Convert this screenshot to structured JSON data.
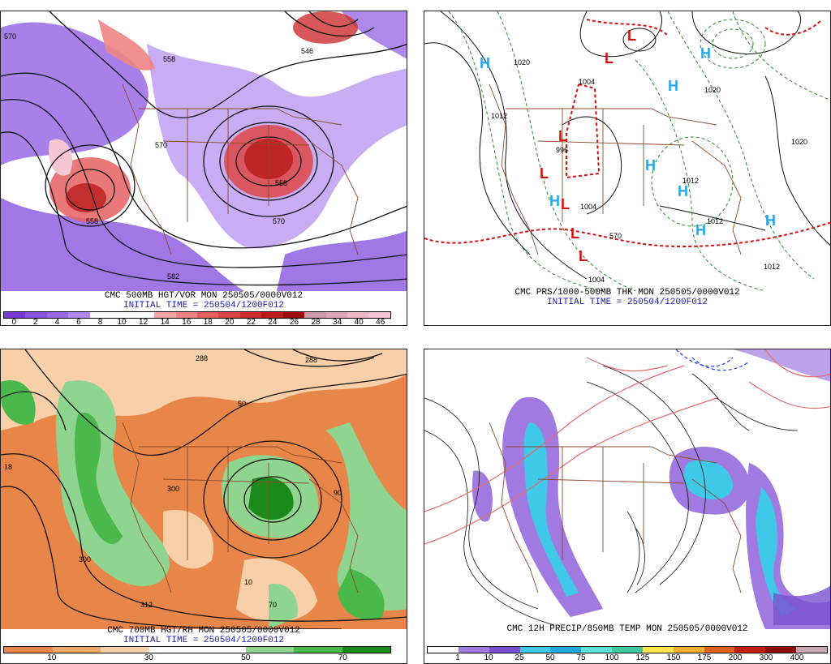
{
  "panels": {
    "tl": {
      "line1": "CMC 500MB HGT/VOR MON 250505/0000V012",
      "line2": "INITIAL TIME = 250504/1200F012",
      "legend_colors": [
        "#7a3ad8",
        "#8a55e0",
        "#9a6ae6",
        "#b08af0",
        "#ffffff",
        "#ffffff",
        "#ffffff",
        "#f4a8a8",
        "#ee8484",
        "#e66060",
        "#dd4646",
        "#cc2e2e",
        "#b81c1c",
        "#9c0e0e",
        "#cc9aa8",
        "#dda8b8",
        "#eeb8c8",
        "#f6c6d2"
      ],
      "legend_labels": [
        "0",
        "2",
        "4",
        "6",
        "8",
        "10",
        "12",
        "14",
        "16",
        "18",
        "20",
        "22",
        "24",
        "26",
        "28",
        "34",
        "40",
        "46"
      ],
      "map_labels": [
        "570",
        "558",
        "546",
        "570",
        "558",
        "570",
        "582",
        "546",
        "558",
        "570",
        "558",
        "570"
      ]
    },
    "tr": {
      "line1": "CMC PRS/1000-500MB THK MON 250505/0000V012",
      "line2": "INITIAL TIME = 250504/1200F012",
      "highs": [
        "H",
        "H",
        "H",
        "H",
        "H",
        "H",
        "H",
        "H",
        "H"
      ],
      "lows": [
        "L",
        "L",
        "L",
        "L",
        "L",
        "L",
        "L"
      ],
      "isobar_labels": [
        "1020",
        "1012",
        "1004",
        "996",
        "1012",
        "1020",
        "1020",
        "1012",
        "1012",
        "1004",
        "1012",
        "570",
        "1004"
      ]
    },
    "bl": {
      "line1": "CMC 700MB HGT/RH MON 250505/0000V012",
      "line2": "INITIAL TIME = 250504/1200F012",
      "legend_colors": [
        "#e8864a",
        "#f0a868",
        "#f7cfa8",
        "#ffffff",
        "#ffffff",
        "#8fd48f",
        "#4ab84a",
        "#1a8a1a"
      ],
      "legend_labels": [
        "10",
        "30",
        "50",
        "70",
        "90"
      ],
      "map_labels": [
        "288",
        "300",
        "312",
        "300",
        "312",
        "288",
        "300",
        "50",
        "90",
        "70",
        "50",
        "30",
        "10",
        "50",
        "70",
        "90",
        "312",
        "18"
      ]
    },
    "br": {
      "line1": "CMC 12H PRECIP/850MB TEMP MON 250505/0000V012",
      "legend_colors": [
        "#ffffff",
        "#a07ae0",
        "#7a50d0",
        "#40c8e8",
        "#20a8e0",
        "#60e0d8",
        "#40c8a0",
        "#ffe64a",
        "#f0b030",
        "#e06020",
        "#c02010",
        "#8a0a0a",
        "#c8a8b0"
      ],
      "legend_labels": [
        "1",
        "10",
        "25",
        "50",
        "75",
        "100",
        "125",
        "150",
        "175",
        "200",
        "300",
        "400"
      ]
    }
  }
}
